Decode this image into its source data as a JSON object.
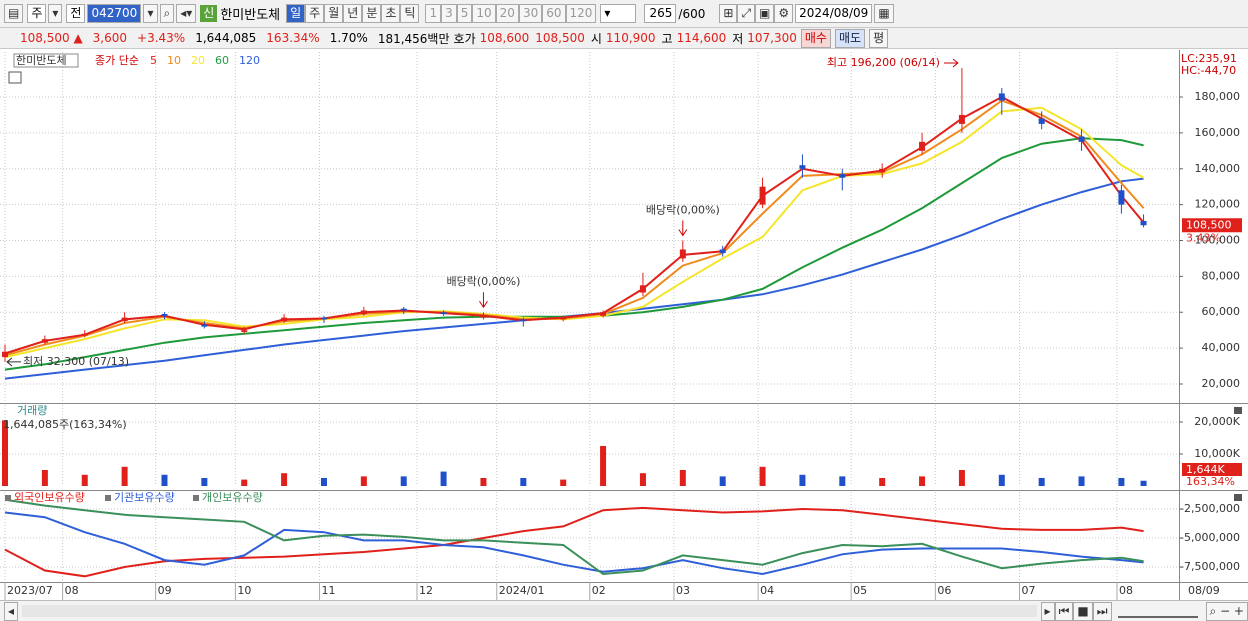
{
  "toolbar": {
    "market": "주",
    "type": "전",
    "code": "042700",
    "new_badge": "신",
    "name": "한미반도체",
    "periods": [
      "일",
      "주",
      "월",
      "년",
      "분",
      "초",
      "틱"
    ],
    "intervals": [
      "1",
      "3",
      "5",
      "10",
      "20",
      "30",
      "60",
      "120"
    ],
    "count": "265",
    "max": "/600",
    "date": "2024/08/09"
  },
  "quote": {
    "price": "108,500 ▲",
    "change": "3,600",
    "change_rate": "+3.43%",
    "volume": "1,644,085",
    "volume_rate": "163.34%",
    "turnover": "1.70%",
    "amount": "181,456백만",
    "bid_ask_label": "호가",
    "ask": "108,600",
    "bid": "108,500",
    "open_label": "시",
    "open": "110,900",
    "high_label": "고",
    "high": "114,600",
    "low_label": "저",
    "low": "107,300",
    "buy": "매수",
    "sell": "매도",
    "avg": "평"
  },
  "chart_data": [
    {
      "type": "candlestick",
      "legend_title": "한미반도체",
      "ma_label": "종가 단순",
      "x": [
        0,
        9,
        18,
        27,
        36,
        45,
        54,
        63,
        72,
        81,
        90,
        99,
        108,
        117,
        126,
        135,
        144,
        153,
        162,
        171,
        180,
        189,
        198,
        207,
        216,
        225,
        234,
        243,
        252,
        257
      ],
      "open": [
        35000,
        43000,
        47000,
        55000,
        59000,
        53000,
        49000,
        55000,
        57000,
        59000,
        62000,
        60000,
        57000,
        56000,
        56000,
        58000,
        71000,
        90000,
        95000,
        120000,
        142000,
        137000,
        138000,
        150000,
        165000,
        182000,
        168000,
        158000,
        128000,
        110900
      ],
      "high": [
        42000,
        47000,
        50000,
        60000,
        60000,
        55000,
        52000,
        59000,
        58000,
        63000,
        63000,
        61000,
        60000,
        57000,
        58000,
        61000,
        82000,
        100000,
        97000,
        135000,
        148000,
        140000,
        143000,
        160000,
        196200,
        185000,
        172000,
        162000,
        131000,
        114600
      ],
      "low": [
        32300,
        42000,
        46000,
        54000,
        56000,
        51000,
        48000,
        54000,
        54000,
        58000,
        59000,
        58000,
        56000,
        52000,
        55000,
        57000,
        69000,
        88000,
        91000,
        118000,
        135000,
        128000,
        135000,
        148000,
        160000,
        170000,
        162000,
        150000,
        115000,
        107300
      ],
      "close": [
        38000,
        45000,
        48000,
        57000,
        58000,
        52000,
        50000,
        57000,
        56000,
        61000,
        61000,
        59000,
        58000,
        55000,
        57000,
        60000,
        75000,
        95000,
        93000,
        130000,
        140000,
        135000,
        140000,
        155000,
        170000,
        178000,
        165000,
        155000,
        120000,
        108500
      ],
      "up_color": "#e0201a",
      "down_color": "#1f4fc9",
      "series": [
        {
          "name": "5",
          "color": "#e0201a",
          "values": [
            37000,
            44000,
            47500,
            56000,
            58000,
            53000,
            50500,
            56000,
            56500,
            60000,
            61000,
            59500,
            58000,
            55500,
            57000,
            59500,
            73000,
            92000,
            94000,
            125000,
            140000,
            136000,
            139000,
            152000,
            168000,
            180000,
            168000,
            156000,
            125000,
            110000
          ]
        },
        {
          "name": "10",
          "color": "#f08a1c",
          "values": [
            36000,
            42000,
            47000,
            54000,
            57500,
            54000,
            51000,
            55000,
            56500,
            59000,
            60500,
            60000,
            58500,
            56000,
            56500,
            59000,
            68000,
            86000,
            93000,
            115000,
            136000,
            137000,
            138000,
            148000,
            162000,
            178000,
            170000,
            158000,
            132000,
            118000
          ]
        },
        {
          "name": "20",
          "color": "#f5e52a",
          "values": [
            35000,
            40000,
            45000,
            51000,
            56000,
            55500,
            52000,
            53500,
            56000,
            57500,
            60000,
            60500,
            59000,
            57000,
            56000,
            58000,
            63000,
            77000,
            90000,
            102000,
            128000,
            136000,
            137000,
            143000,
            155000,
            172000,
            174000,
            162000,
            142000,
            135000
          ]
        },
        {
          "name": "60",
          "color": "#1f9a3a",
          "values": [
            28000,
            31000,
            35000,
            39000,
            43000,
            46000,
            48000,
            50000,
            52000,
            54000,
            55500,
            57000,
            57500,
            57500,
            57500,
            58000,
            60000,
            63000,
            67000,
            73000,
            85000,
            96000,
            106000,
            118000,
            132000,
            146000,
            154000,
            157000,
            156000,
            153000
          ]
        },
        {
          "name": "120",
          "color": "#2f5fd8",
          "values": [
            23000,
            25500,
            28000,
            30500,
            33000,
            36000,
            39000,
            42000,
            44500,
            47000,
            49500,
            51500,
            53500,
            55500,
            57500,
            59500,
            62000,
            64500,
            67000,
            70000,
            75000,
            81000,
            88000,
            95000,
            103000,
            112000,
            120000,
            127000,
            133000,
            134500
          ]
        }
      ],
      "xlim": [
        0,
        265
      ],
      "ylim": [
        9400,
        205100
      ],
      "yticks": [
        {
          "value": 20000,
          "label": "20,000"
        },
        {
          "value": 40000,
          "label": "40,000"
        },
        {
          "value": 60000,
          "label": "60,000"
        },
        {
          "value": 80000,
          "label": "80,000"
        },
        {
          "value": 100000,
          "label": "100,000"
        },
        {
          "value": 120000,
          "label": "120,000"
        },
        {
          "value": 140000,
          "label": "140,000"
        },
        {
          "value": 160000,
          "label": "160,000"
        },
        {
          "value": 180000,
          "label": "180,000"
        }
      ],
      "grid": true,
      "high_label": "최고 196,200 (06/14)",
      "low_label": "최저 32,300 (07/13)",
      "events": [
        {
          "label": "배당락(0,00%)",
          "x": 108
        },
        {
          "label": "배당락(0,00%)",
          "x": 153
        }
      ],
      "corner_labels": [
        "LC:235,91",
        "HC:-44,70"
      ],
      "last_label": "108,500",
      "change_tag": "3.43%"
    },
    {
      "type": "bar",
      "title": "거래량",
      "summary": "1,644,085주(163,34%)",
      "x": [
        0,
        9,
        18,
        27,
        36,
        45,
        54,
        63,
        72,
        81,
        90,
        99,
        108,
        117,
        126,
        135,
        144,
        153,
        162,
        171,
        180,
        189,
        198,
        207,
        216,
        225,
        234,
        243,
        252,
        257
      ],
      "values": [
        20500,
        5000,
        3500,
        6000,
        3500,
        2500,
        2000,
        4000,
        2500,
        3000,
        3000,
        4500,
        2500,
        2500,
        2000,
        12500,
        4000,
        5000,
        3000,
        6000,
        3500,
        3000,
        2500,
        3000,
        5000,
        3500,
        2500,
        3000,
        2500,
        1644
      ],
      "up_color": "#e0201a",
      "down_color": "#1f4fc9",
      "xlim": [
        0,
        265
      ],
      "ylim": [
        0,
        25300
      ],
      "yticks": [
        {
          "value": 10000,
          "label": "10,000K"
        },
        {
          "value": 20000,
          "label": "20,000K"
        }
      ],
      "grid": true,
      "last_label": "1,644K",
      "last_change": "163,34%"
    },
    {
      "type": "line",
      "x": [
        0,
        9,
        18,
        27,
        36,
        45,
        54,
        63,
        72,
        81,
        90,
        99,
        108,
        117,
        126,
        135,
        144,
        153,
        162,
        171,
        180,
        189,
        198,
        207,
        216,
        225,
        234,
        243,
        252,
        257
      ],
      "series": [
        {
          "name": "외국인보유수량",
          "color": "#e0201a",
          "values": [
            -6000000,
            -7800000,
            -8300000,
            -7500000,
            -7000000,
            -6800000,
            -6700000,
            -6600000,
            -6400000,
            -6200000,
            -5900000,
            -5600000,
            -5000000,
            -4400000,
            -4000000,
            -2600000,
            -2400000,
            -2600000,
            -2800000,
            -2700000,
            -2500000,
            -2600000,
            -3000000,
            -3400000,
            -3800000,
            -4200000,
            -4300000,
            -4300000,
            -4100000,
            -4400000
          ]
        },
        {
          "name": "기관보유수량",
          "color": "#2f5fd8",
          "values": [
            -2800000,
            -3200000,
            -4500000,
            -5500000,
            -6900000,
            -7300000,
            -6500000,
            -4300000,
            -4500000,
            -5200000,
            -5200000,
            -5600000,
            -5800000,
            -6500000,
            -7300000,
            -7900000,
            -7600000,
            -6900000,
            -7600000,
            -8100000,
            -7300000,
            -6400000,
            -6000000,
            -5900000,
            -5900000,
            -5900000,
            -6200000,
            -6600000,
            -6900000,
            -7100000
          ]
        },
        {
          "name": "개인보유수량",
          "color": "#3a8f5a",
          "values": [
            -1700000,
            -2200000,
            -2600000,
            -3000000,
            -3200000,
            -3400000,
            -3600000,
            -5200000,
            -4800000,
            -4700000,
            -4900000,
            -5200000,
            -5200000,
            -5400000,
            -5600000,
            -8100000,
            -7800000,
            -6500000,
            -6900000,
            -7300000,
            -6300000,
            -5600000,
            -5700000,
            -5500000,
            -6600000,
            -7600000,
            -7200000,
            -6900000,
            -6700000,
            -7000000
          ]
        }
      ],
      "xlim": [
        0,
        265
      ],
      "ylim": [
        -8790000,
        -1030000
      ],
      "yticks": [
        {
          "value": -2500000,
          "label": "-2,500,000"
        },
        {
          "value": -5000000,
          "label": "-5,000,000"
        },
        {
          "value": -7500000,
          "label": "-7,500,000"
        }
      ],
      "xticks": [
        {
          "value": 0,
          "label": "2023/07"
        },
        {
          "value": 13,
          "label": "08"
        },
        {
          "value": 34,
          "label": "09"
        },
        {
          "value": 52,
          "label": "10"
        },
        {
          "value": 71,
          "label": "11"
        },
        {
          "value": 93,
          "label": "12"
        },
        {
          "value": 111,
          "label": "2024/01"
        },
        {
          "value": 132,
          "label": "02"
        },
        {
          "value": 151,
          "label": "03"
        },
        {
          "value": 170,
          "label": "04"
        },
        {
          "value": 191,
          "label": "05"
        },
        {
          "value": 210,
          "label": "06"
        },
        {
          "value": 229,
          "label": "07"
        },
        {
          "value": 251,
          "label": "08"
        }
      ],
      "x_end_label": "08/09",
      "grid": true
    }
  ]
}
